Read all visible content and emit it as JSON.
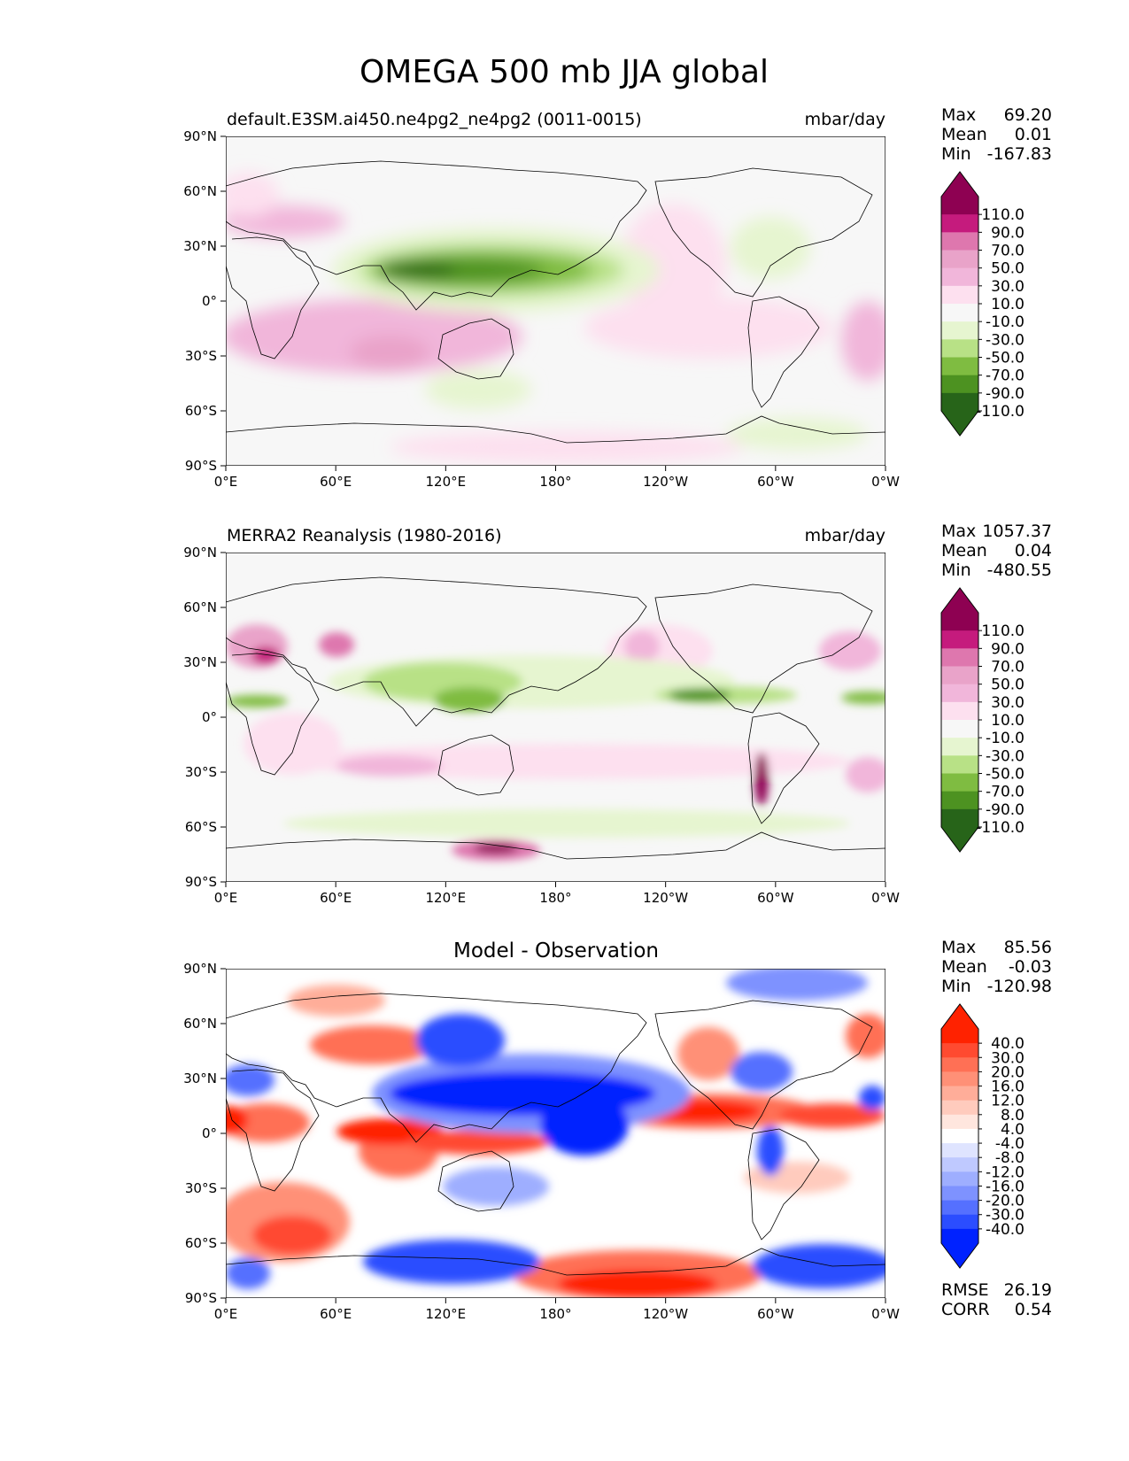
{
  "title": "OMEGA 500 mb JJA global",
  "lat_ticks": [
    "90°N",
    "60°N",
    "30°N",
    "0°",
    "30°S",
    "60°S",
    "90°S"
  ],
  "lon_ticks": [
    "0°E",
    "60°E",
    "120°E",
    "180°",
    "120°W",
    "60°W",
    "0°W"
  ],
  "panels": [
    {
      "id": "model",
      "left_title": "default.E3SM.ai450.ne4pg2_ne4pg2 (0011-0015)",
      "right_title": "mbar/day",
      "stats": [
        [
          "Max",
          "69.20"
        ],
        [
          "Mean",
          "0.01"
        ],
        [
          "Min",
          "-167.83"
        ]
      ],
      "colorbar_labels": [
        "110.0",
        "90.0",
        "70.0",
        "50.0",
        "30.0",
        "10.0",
        "-10.0",
        "-30.0",
        "-50.0",
        "-70.0",
        "-90.0",
        "-110.0"
      ],
      "colors": [
        "#8e0152",
        "#c51b7d",
        "#de77ae",
        "#e9a3c9",
        "#f1b6da",
        "#fde0ef",
        "#f7f7f7",
        "#e6f5d0",
        "#b8e186",
        "#7fbc41",
        "#4d9221",
        "#276419"
      ]
    },
    {
      "id": "obs",
      "left_title": "MERRA2 Reanalysis (1980-2016)",
      "right_title": "mbar/day",
      "stats": [
        [
          "Max",
          "1057.37"
        ],
        [
          "Mean",
          "0.04"
        ],
        [
          "Min",
          "-480.55"
        ]
      ],
      "colorbar_labels": [
        "110.0",
        "90.0",
        "70.0",
        "50.0",
        "30.0",
        "10.0",
        "-10.0",
        "-30.0",
        "-50.0",
        "-70.0",
        "-90.0",
        "-110.0"
      ],
      "colors": [
        "#8e0152",
        "#c51b7d",
        "#de77ae",
        "#e9a3c9",
        "#f1b6da",
        "#fde0ef",
        "#f7f7f7",
        "#e6f5d0",
        "#b8e186",
        "#7fbc41",
        "#4d9221",
        "#276419"
      ]
    },
    {
      "id": "diff",
      "center_title": "Model - Observation",
      "stats": [
        [
          "Max",
          "85.56"
        ],
        [
          "Mean",
          "-0.03"
        ],
        [
          "Min",
          "-120.98"
        ]
      ],
      "colorbar_labels": [
        "40.0",
        "30.0",
        "20.0",
        "16.0",
        "12.0",
        "8.0",
        "4.0",
        "-4.0",
        "-8.0",
        "-12.0",
        "-16.0",
        "-20.0",
        "-30.0",
        "-40.0"
      ],
      "colors": [
        "#ff2200",
        "#ff4a30",
        "#ff7055",
        "#ff9077",
        "#ffad99",
        "#ffcbbd",
        "#ffe6de",
        "#ffffff",
        "#dfe4ff",
        "#bfc9ff",
        "#9eaeff",
        "#7e92ff",
        "#5570ff",
        "#2b4dff",
        "#0022ff"
      ],
      "extra_stats": [
        [
          "RMSE",
          "26.19"
        ],
        [
          "CORR",
          "0.54"
        ]
      ]
    }
  ]
}
